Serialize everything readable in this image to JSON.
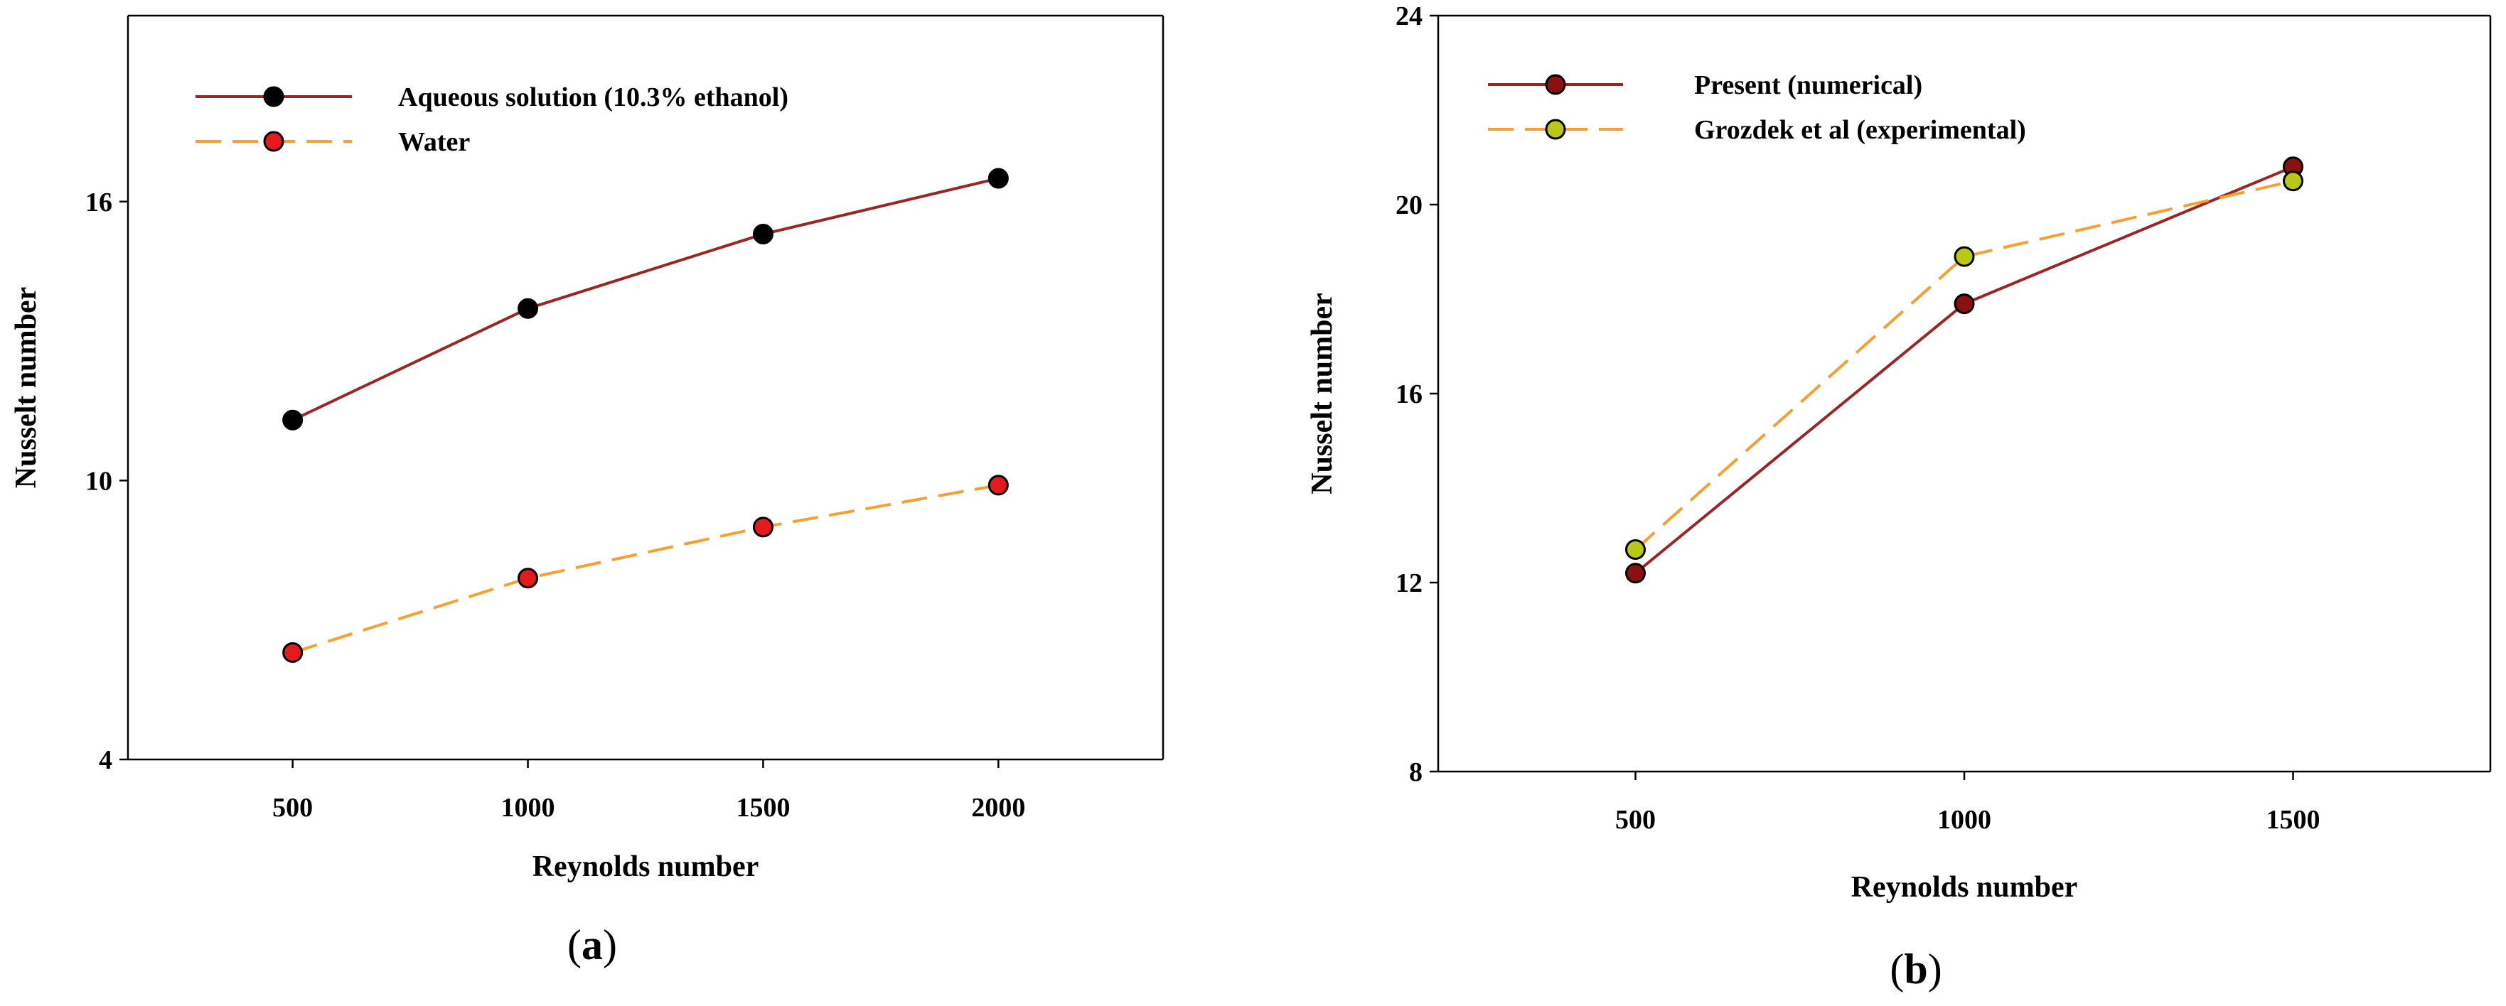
{
  "colors": {
    "series_dark_red": "#9b2525",
    "series_orange": "#f5a030",
    "marker_black": "#000000",
    "marker_red": "#e41a1c",
    "marker_dark_red": "#8b1010",
    "marker_yellow_green": "#b8c814"
  },
  "chart_data": [
    {
      "id": "a",
      "type": "line",
      "panel_label": "a",
      "title": "",
      "xlabel": "Reynolds number",
      "ylabel": "Nusselt number",
      "x": [
        500,
        1000,
        1500,
        2000
      ],
      "xticks": [
        500,
        1000,
        1500,
        2000
      ],
      "xlim": [
        150,
        2350
      ],
      "ylim": [
        4,
        20
      ],
      "yticks": [
        4,
        10,
        16
      ],
      "legend_position": "top-left",
      "series": [
        {
          "name": "Aqueous solution (10.3% ethanol)",
          "values": [
            11.3,
            13.7,
            15.3,
            16.5
          ],
          "line_color": "#9b2525",
          "line_style": "solid",
          "marker_color": "#000000"
        },
        {
          "name": "Water",
          "values": [
            6.3,
            7.9,
            9.0,
            9.9
          ],
          "line_color": "#f5a030",
          "line_style": "dashed",
          "marker_color": "#e41a1c"
        }
      ]
    },
    {
      "id": "b",
      "type": "line",
      "panel_label": "b",
      "title": "",
      "xlabel": "Reynolds number",
      "ylabel": "Nusselt number",
      "x": [
        500,
        1000,
        1500
      ],
      "xticks": [
        500,
        1000,
        1500
      ],
      "xlim": [
        200,
        1800
      ],
      "ylim": [
        8,
        24
      ],
      "yticks": [
        8,
        12,
        16,
        20,
        24
      ],
      "legend_position": "top-left",
      "series": [
        {
          "name": "Present (numerical)",
          "values": [
            12.2,
            17.9,
            20.8
          ],
          "line_color": "#9b2525",
          "line_style": "solid",
          "marker_color": "#8b1010"
        },
        {
          "name": "Grozdek et al (experimental)",
          "values": [
            12.7,
            18.9,
            20.5
          ],
          "line_color": "#f5a030",
          "line_style": "dashed",
          "marker_color": "#b8c814"
        }
      ]
    }
  ]
}
